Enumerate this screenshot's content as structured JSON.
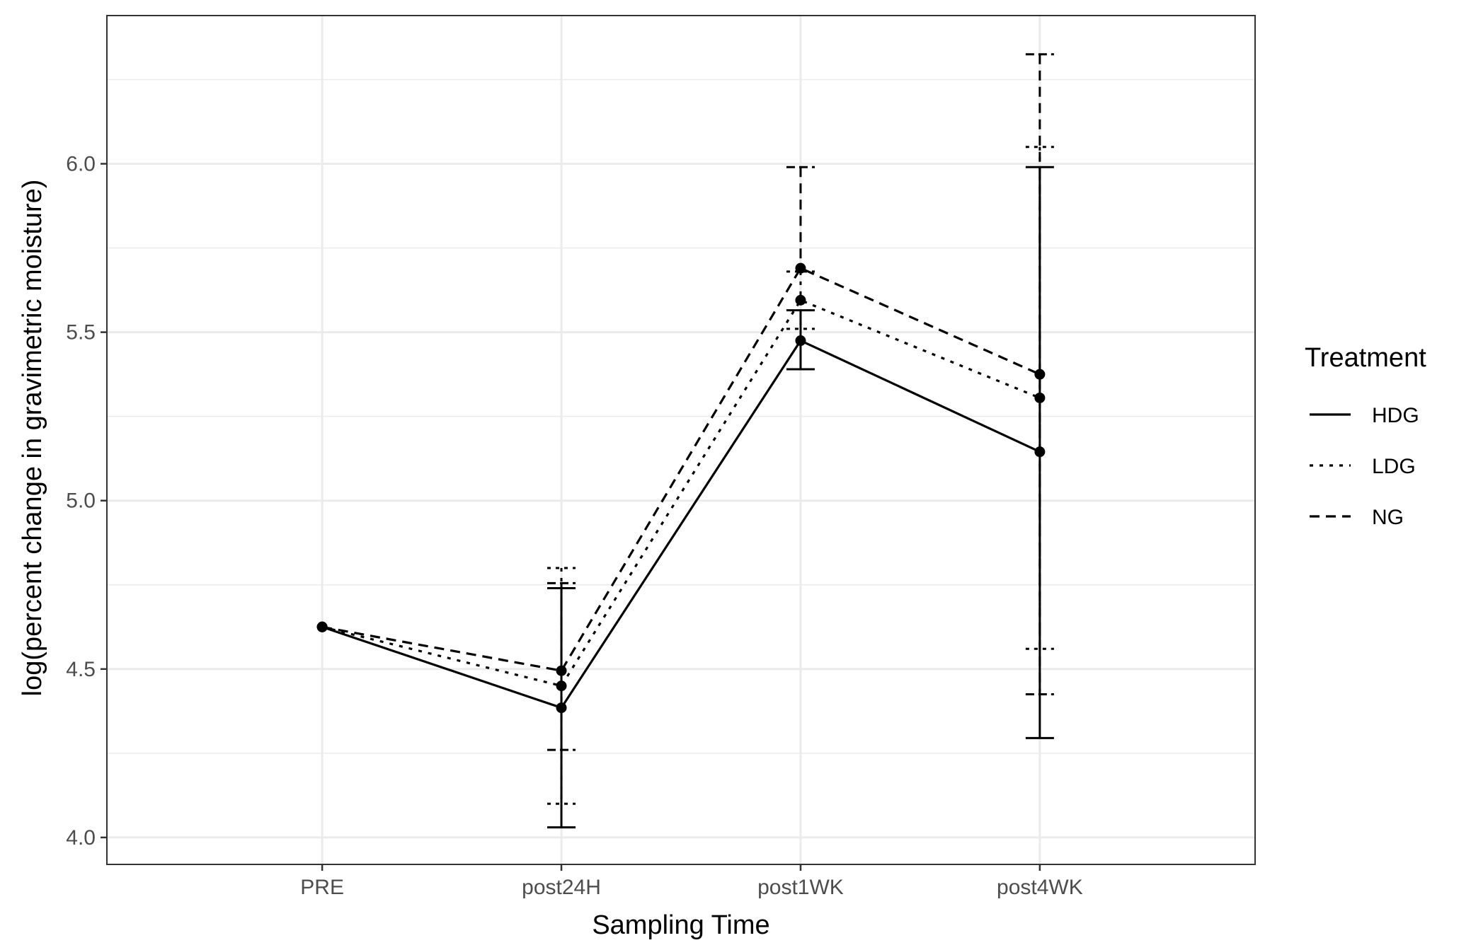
{
  "chart_data": {
    "type": "line",
    "title": "",
    "xlabel": "Sampling Time",
    "ylabel": "log(percent change in gravimetric moisture)",
    "categories": [
      "PRE",
      "post24H",
      "post1WK",
      "post4WK"
    ],
    "ylim": [
      3.92,
      6.44
    ],
    "yticks": [
      4.0,
      4.5,
      5.0,
      5.5,
      6.0
    ],
    "ytick_labels": [
      "4.0",
      "4.5",
      "5.0",
      "5.5",
      "6.0"
    ],
    "grid": true,
    "legend": {
      "title": "Treatment",
      "position": "right"
    },
    "series": [
      {
        "name": "HDG",
        "linestyle": "solid",
        "values": [
          4.625,
          4.385,
          5.475,
          5.145
        ],
        "error_low": [
          null,
          4.03,
          5.39,
          4.295
        ],
        "error_high": [
          null,
          4.74,
          5.565,
          5.99
        ]
      },
      {
        "name": "LDG",
        "linestyle": "dotted",
        "values": [
          4.625,
          4.45,
          5.595,
          5.305
        ],
        "error_low": [
          null,
          4.1,
          5.51,
          4.56
        ],
        "error_high": [
          null,
          4.8,
          5.68,
          6.05
        ]
      },
      {
        "name": "NG",
        "linestyle": "dashed",
        "values": [
          4.625,
          4.495,
          5.69,
          5.375
        ],
        "error_low": [
          null,
          4.26,
          null,
          4.425
        ],
        "error_high": [
          null,
          4.755,
          5.99,
          6.325
        ]
      }
    ],
    "colors": {
      "line": "#000000",
      "grid": "#ebebeb",
      "tick_text": "#4d4d4d",
      "panel_border": "#333333"
    }
  }
}
